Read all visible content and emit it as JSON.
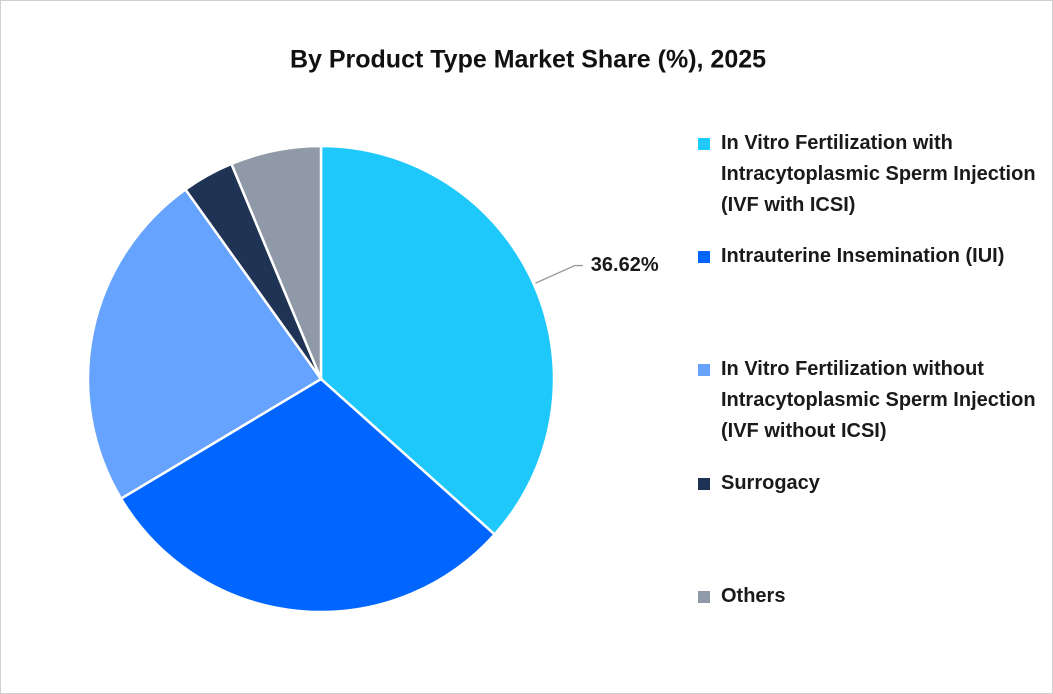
{
  "chart_data": {
    "type": "pie",
    "title": "By Product Type Market Share (%), 2025",
    "categories": [
      "In Vitro Fertilization with Intracytoplasmic Sperm Injection (IVF with ICSI)",
      "Intrauterine Insemination (IUI)",
      "In Vitro Fertilization without Intracytoplasmic Sperm Injection (IVF without ICSI)",
      "Surrogacy",
      "Others"
    ],
    "values": [
      36.62,
      29.8,
      23.7,
      3.6,
      6.28
    ],
    "value_labels": [
      "36.62%",
      null,
      null,
      null,
      null
    ],
    "colors": [
      "#1ec8fb",
      "#0066ff",
      "#66a3ff",
      "#1f3354",
      "#9099a8"
    ],
    "legend": "right"
  }
}
